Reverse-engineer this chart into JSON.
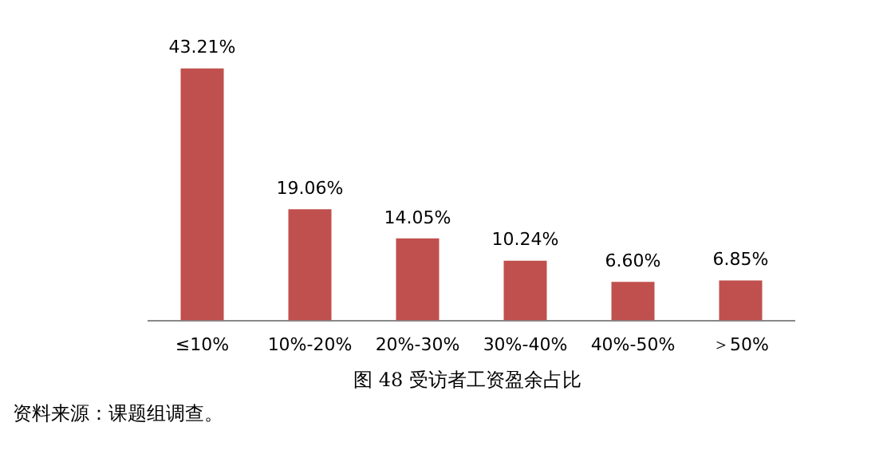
{
  "chart_data": {
    "type": "bar",
    "title": "图 48 受访者工资盈余占比",
    "annotations": [
      "资料来源：课题组调查。"
    ],
    "categories": [
      "≤10%",
      "10%-20%",
      "20%-30%",
      "30%-40%",
      "40%-50%",
      "＞50%"
    ],
    "values": [
      43.21,
      19.06,
      14.05,
      10.24,
      6.6,
      6.85
    ],
    "value_labels": [
      "43.21%",
      "19.06%",
      "14.05%",
      "10.24%",
      "6.60%",
      "6.85%"
    ],
    "color": "#c0504d",
    "grid": false,
    "legend": false
  }
}
